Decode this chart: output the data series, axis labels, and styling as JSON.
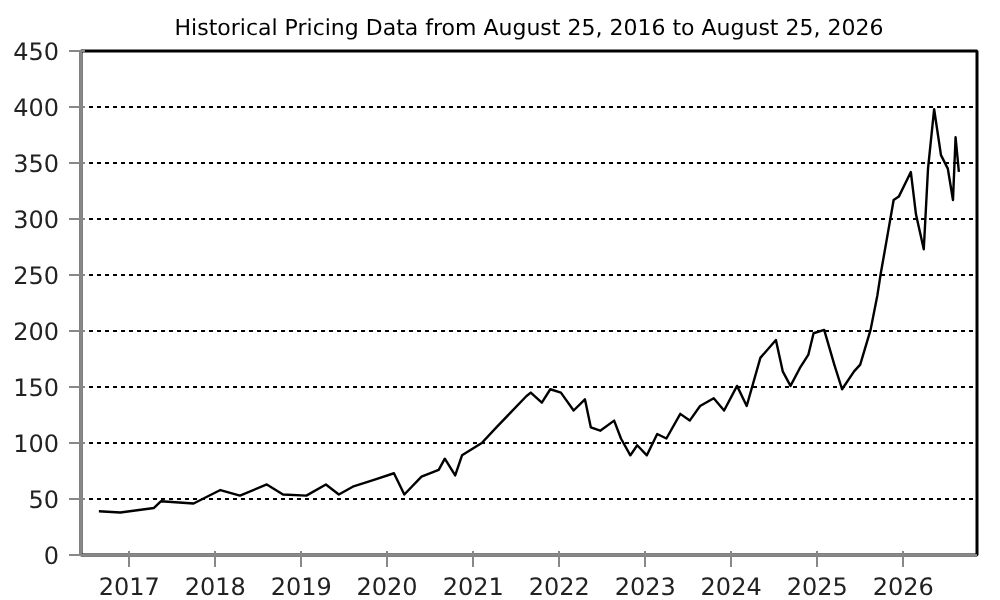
{
  "chart_data": {
    "type": "line",
    "title": "Historical Pricing Data from August 25, 2016 to August 25, 2026",
    "x": [
      "2016-08-25",
      "2016-11-24",
      "2017-04-16",
      "2017-05-16",
      "2017-10-01",
      "2018-01-23",
      "2018-04-16",
      "2018-08-08",
      "2018-10-16",
      "2019-01-23",
      "2019-04-16",
      "2019-06-10",
      "2019-08-08",
      "2019-11-06",
      "2020-01-30",
      "2020-03-14",
      "2020-05-26",
      "2020-08-07",
      "2020-09-02",
      "2020-10-16",
      "2020-11-14",
      "2021-02-06",
      "2021-04-09",
      "2021-06-03",
      "2021-08-15",
      "2021-09-02",
      "2021-10-19",
      "2021-11-24",
      "2022-01-08",
      "2022-03-03",
      "2022-04-20",
      "2022-05-15",
      "2022-06-24",
      "2022-08-22",
      "2022-09-20",
      "2022-10-30",
      "2022-11-28",
      "2023-01-08",
      "2023-02-21",
      "2023-04-01",
      "2023-05-30",
      "2023-07-09",
      "2023-08-22",
      "2023-10-19",
      "2023-12-02",
      "2024-01-26",
      "2024-03-07",
      "2024-05-04",
      "2024-07-09",
      "2024-08-07",
      "2024-09-09",
      "2024-10-19",
      "2024-11-24",
      "2024-12-16",
      "2025-01-30",
      "2025-03-14",
      "2025-04-16",
      "2025-06-06",
      "2025-07-02",
      "2025-08-15",
      "2025-09-13",
      "2025-09-27",
      "2025-10-23",
      "2025-11-21",
      "2025-12-13",
      "2026-02-02",
      "2026-02-24",
      "2026-03-29",
      "2026-04-16",
      "2026-05-12",
      "2026-06-10",
      "2026-07-09",
      "2026-07-31",
      "2026-08-11",
      "2026-08-25"
    ],
    "series": [
      {
        "color": "#000000",
        "values": [
          39,
          38,
          42,
          48,
          46,
          58,
          53,
          63,
          54,
          53,
          63,
          54,
          61,
          67,
          73,
          54,
          70,
          76,
          86,
          71,
          89,
          100,
          114,
          126,
          142,
          145,
          136,
          148,
          145,
          129,
          139,
          114,
          111,
          120,
          104,
          89,
          98,
          89,
          108,
          104,
          126,
          120,
          133,
          140,
          129,
          151,
          133,
          176,
          192,
          164,
          151,
          167,
          179,
          198,
          201,
          170,
          148,
          164,
          170,
          201,
          232,
          251,
          282,
          317,
          320,
          342,
          304,
          273,
          345,
          398,
          357,
          345,
          317,
          373,
          342
        ]
      }
    ],
    "xlim": [
      "2016-06-10",
      "2026-11-10"
    ],
    "xticks": [
      "2017",
      "2018",
      "2019",
      "2020",
      "2021",
      "2022",
      "2023",
      "2024",
      "2025",
      "2026"
    ],
    "ylim": [
      0,
      450
    ],
    "yticks": [
      0,
      50,
      100,
      150,
      200,
      250,
      300,
      350,
      400,
      450
    ],
    "grid": "y",
    "marker": "none",
    "line_style": "solid"
  }
}
